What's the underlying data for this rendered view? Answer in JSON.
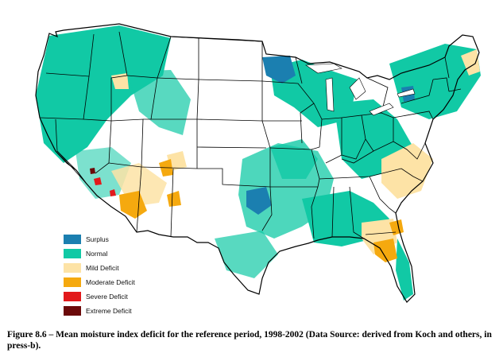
{
  "legend": {
    "items": [
      {
        "label": "Surplus",
        "color": "#1b7fb0"
      },
      {
        "label": "Normal",
        "color": "#11c9a5"
      },
      {
        "label": "Mild Deficit",
        "color": "#fde3a6"
      },
      {
        "label": "Moderate Deficit",
        "color": "#f5a90f"
      },
      {
        "label": "Severe Deficit",
        "color": "#e2191b"
      },
      {
        "label": "Extreme Deficit",
        "color": "#6b0a0a"
      }
    ]
  },
  "caption": {
    "text": "Figure 8.6 – Mean moisture index deficit for the reference period, 1998-2002 (Data Source: derived from Koch and others, in press-b)."
  },
  "colors": {
    "surplus": "#1b7fb0",
    "normal": "#11c9a5",
    "mild": "#fde3a6",
    "moderate": "#f5a90f",
    "severe": "#e2191b",
    "extreme": "#6b0a0a",
    "border": "#000000"
  }
}
